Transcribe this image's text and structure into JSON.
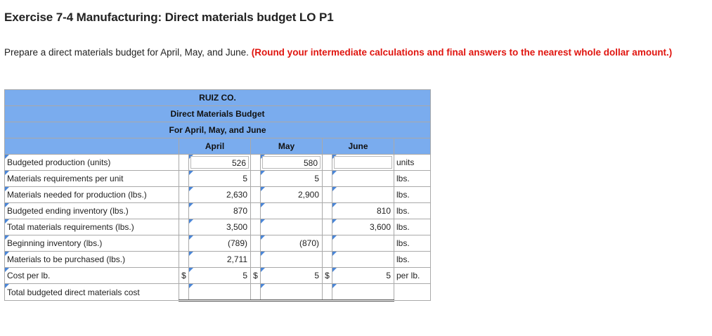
{
  "title": "Exercise 7-4 Manufacturing: Direct materials budget LO P1",
  "instructions": {
    "text": "Prepare a direct materials budget for April, May, and June.",
    "emphasis": "(Round your intermediate calculations and final answers to the nearest whole dollar amount.)"
  },
  "table": {
    "company": "RUIZ CO.",
    "budget_name": "Direct Materials Budget",
    "period": "For April, May, and June",
    "months": [
      "April",
      "May",
      "June"
    ],
    "rows": [
      {
        "label": "Budgeted production (units)",
        "april": "526",
        "may": "580",
        "june": "",
        "unit": "units"
      },
      {
        "label": "Materials requirements per unit",
        "april": "5",
        "may": "5",
        "june": "",
        "unit": "lbs."
      },
      {
        "label": "Materials needed for production (lbs.)",
        "april": "2,630",
        "may": "2,900",
        "june": "",
        "unit": "lbs."
      },
      {
        "label": "Budgeted ending inventory (lbs.)",
        "april": "870",
        "may": "",
        "june": "810",
        "unit": "lbs."
      },
      {
        "label": "Total materials requirements (lbs.)",
        "april": "3,500",
        "may": "",
        "june": "3,600",
        "unit": "lbs."
      },
      {
        "label": "Beginning inventory (lbs.)",
        "april": "(789)",
        "may": "(870)",
        "june": "",
        "unit": "lbs."
      },
      {
        "label": "Materials to be purchased (lbs.)",
        "april": "2,711",
        "may": "",
        "june": "",
        "unit": "lbs."
      },
      {
        "label": "Cost per lb.",
        "april": "5",
        "may": "5",
        "june": "5",
        "unit": "per lb.",
        "currency": "$"
      },
      {
        "label": "Total budgeted direct materials cost",
        "april": "",
        "may": "",
        "june": "",
        "unit": ""
      }
    ]
  },
  "colors": {
    "header_bg": "#7aacee",
    "emphasis": "#e0150f",
    "input_marker": "#4a86d8"
  }
}
